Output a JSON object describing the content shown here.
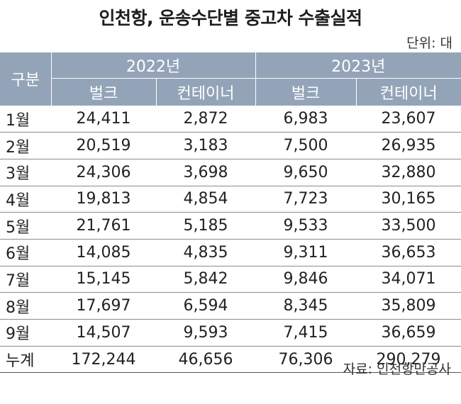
{
  "page": {
    "title": "인천항, 운송수단별 중고차 수출실적",
    "unit": "단위: 대",
    "source": "자료: 인천항만공사"
  },
  "header": {
    "row_label": "구분",
    "years": [
      "2022년",
      "2023년"
    ],
    "types": [
      "벌크",
      "컨테이너",
      "벌크",
      "컨테이너"
    ]
  },
  "rows": [
    {
      "label": "1월",
      "cells": [
        "24,411",
        "2,872",
        "6,983",
        "23,607"
      ]
    },
    {
      "label": "2월",
      "cells": [
        "20,519",
        "3,183",
        "7,500",
        "26,935"
      ]
    },
    {
      "label": "3월",
      "cells": [
        "24,306",
        "3,698",
        "9,650",
        "32,880"
      ]
    },
    {
      "label": "4월",
      "cells": [
        "19,813",
        "4,854",
        "7,723",
        "30,165"
      ]
    },
    {
      "label": "5월",
      "cells": [
        "21,761",
        "5,185",
        "9,533",
        "33,500"
      ]
    },
    {
      "label": "6월",
      "cells": [
        "14,085",
        "4,835",
        "9,311",
        "36,653"
      ]
    },
    {
      "label": "7월",
      "cells": [
        "15,145",
        "5,842",
        "9,846",
        "34,071"
      ]
    },
    {
      "label": "8월",
      "cells": [
        "17,697",
        "6,594",
        "8,345",
        "35,809"
      ]
    },
    {
      "label": "9월",
      "cells": [
        "14,507",
        "9,593",
        "7,415",
        "36,659"
      ]
    },
    {
      "label": "누계",
      "cells": [
        "172,244",
        "46,656",
        "76,306",
        "290,279"
      ]
    }
  ],
  "colors": {
    "header_bg": "#94a4b8",
    "header_text": "#ffffff",
    "rule": "#8c8c8c"
  },
  "chart_data": {
    "type": "table",
    "title": "인천항, 운송수단별 중고차 수출실적",
    "unit": "단위: 대",
    "columns": [
      "구분",
      "2022년 벌크",
      "2022년 컨테이너",
      "2023년 벌크",
      "2023년 컨테이너"
    ],
    "categories": [
      "1월",
      "2월",
      "3월",
      "4월",
      "5월",
      "6월",
      "7월",
      "8월",
      "9월",
      "누계"
    ],
    "series": [
      {
        "name": "2022년 벌크",
        "values": [
          24411,
          20519,
          24306,
          19813,
          21761,
          14085,
          15145,
          17697,
          14507,
          172244
        ]
      },
      {
        "name": "2022년 컨테이너",
        "values": [
          2872,
          3183,
          3698,
          4854,
          5185,
          4835,
          5842,
          6594,
          9593,
          46656
        ]
      },
      {
        "name": "2023년 벌크",
        "values": [
          6983,
          7500,
          9650,
          7723,
          9533,
          9311,
          9846,
          8345,
          7415,
          76306
        ]
      },
      {
        "name": "2023년 컨테이너",
        "values": [
          23607,
          26935,
          32880,
          30165,
          33500,
          36653,
          34071,
          35809,
          36659,
          290279
        ]
      }
    ]
  }
}
